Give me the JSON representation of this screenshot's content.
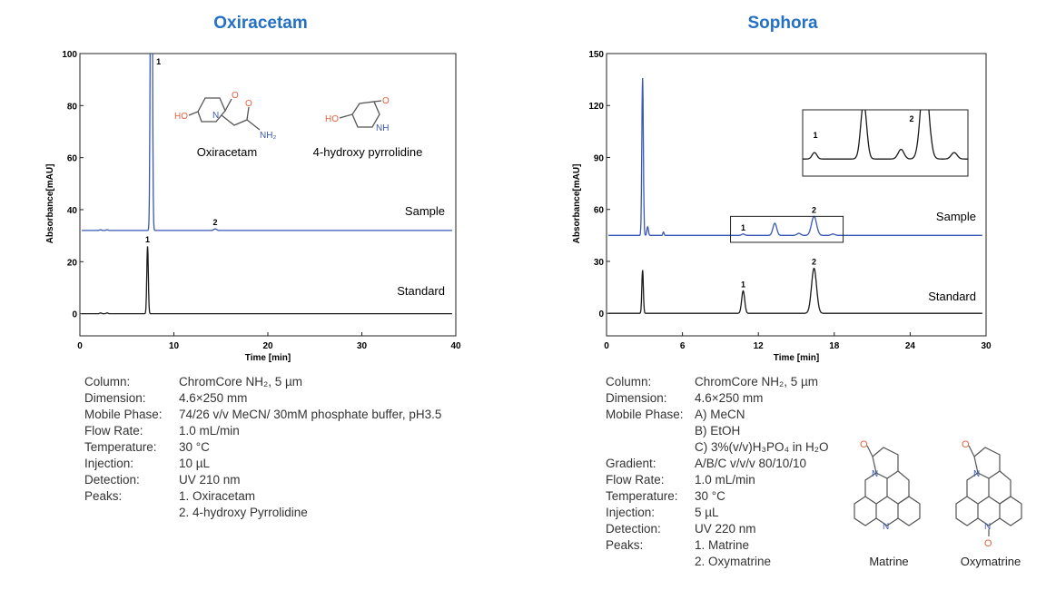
{
  "panels": [
    {
      "title": "Oxiracetam",
      "info": [
        {
          "key": "Column:",
          "values": [
            "ChromCore NH₂, 5 µm"
          ]
        },
        {
          "key": "Dimension:",
          "values": [
            "4.6×250 mm"
          ]
        },
        {
          "key": "Mobile Phase:",
          "values": [
            "74/26 v/v MeCN/ 30mM phosphate buffer, pH3.5"
          ]
        },
        {
          "key": "Flow Rate:",
          "values": [
            "1.0 mL/min"
          ]
        },
        {
          "key": "Temperature:",
          "values": [
            "30 °C"
          ]
        },
        {
          "key": "Injection:",
          "values": [
            "10 µL"
          ]
        },
        {
          "key": "Detection:",
          "values": [
            "UV 210 nm"
          ]
        },
        {
          "key": "Peaks:",
          "values": [
            "1. Oxiracetam",
            "2. 4-hydroxy Pyrrolidine"
          ]
        }
      ],
      "structures": [
        "Oxiracetam",
        "4-hydroxy pyrrolidine"
      ]
    },
    {
      "title": "Sophora",
      "info": [
        {
          "key": "Column:",
          "values": [
            "ChromCore NH₂, 5 µm"
          ]
        },
        {
          "key": "Dimension:",
          "values": [
            "4.6×250 mm"
          ]
        },
        {
          "key": "Mobile Phase:",
          "values": [
            "A) MeCN",
            "B) EtOH",
            "C) 3%(v/v)H₃PO₄ in H₂O"
          ]
        },
        {
          "key": "Gradient:",
          "values": [
            "A/B/C v/v/v 80/10/10"
          ]
        },
        {
          "key": "Flow Rate:",
          "values": [
            "1.0 mL/min"
          ]
        },
        {
          "key": "Temperature:",
          "values": [
            "30 °C"
          ]
        },
        {
          "key": "Injection:",
          "values": [
            "5 µL"
          ]
        },
        {
          "key": "Detection:",
          "values": [
            "UV 220 nm"
          ]
        },
        {
          "key": "Peaks:",
          "values": [
            "1. Matrine",
            "2. Oxymatrine"
          ]
        }
      ],
      "structures": [
        "Matrine",
        "Oxymatrine"
      ]
    }
  ],
  "colors": {
    "title": "#2470c4",
    "sample": "#3a57b5",
    "standard": "#1a1a1a"
  },
  "chart_data": [
    {
      "type": "line",
      "title": "Oxiracetam",
      "xlabel": "Time [min]",
      "ylabel": "Absorbance[mAU]",
      "xlim": [
        0,
        40
      ],
      "ylim": [
        -8.5,
        100
      ],
      "xticks": [
        0,
        10,
        20,
        30,
        40
      ],
      "yticks": [
        0,
        20,
        40,
        60,
        80,
        100
      ],
      "series": [
        {
          "name": "Sample",
          "baseline": 32,
          "color": "sample",
          "peaks": [
            {
              "t": 7.6,
              "h": 200,
              "w": 0.09,
              "label": "1"
            },
            {
              "t": 14.4,
              "h": 0.6,
              "w": 0.15,
              "label": "2"
            },
            {
              "t": 2.2,
              "h": 0.3,
              "w": 0.1
            },
            {
              "t": 2.9,
              "h": 0.3,
              "w": 0.1
            }
          ]
        },
        {
          "name": "Standard",
          "baseline": 0,
          "color": "standard",
          "peaks": [
            {
              "t": 7.2,
              "h": 26,
              "w": 0.08,
              "label": "1"
            },
            {
              "t": 2.2,
              "h": 0.3,
              "w": 0.1
            },
            {
              "t": 2.9,
              "h": 0.3,
              "w": 0.1
            }
          ]
        }
      ]
    },
    {
      "type": "line",
      "title": "Sophora",
      "xlabel": "Time [min]",
      "ylabel": "Absorbance[mAU]",
      "xlim": [
        0,
        30
      ],
      "ylim": [
        -13,
        150
      ],
      "xticks": [
        0,
        6,
        12,
        18,
        24,
        30
      ],
      "yticks": [
        0,
        30,
        60,
        90,
        120,
        150
      ],
      "series": [
        {
          "name": "Sample",
          "baseline": 45,
          "color": "sample",
          "peaks": [
            {
              "t": 2.85,
              "h": 91,
              "w": 0.06
            },
            {
              "t": 3.25,
              "h": 5,
              "w": 0.06
            },
            {
              "t": 4.5,
              "h": 2,
              "w": 0.05
            },
            {
              "t": 10.8,
              "h": 0.8,
              "w": 0.12,
              "label": "1"
            },
            {
              "t": 13.3,
              "h": 7,
              "w": 0.15
            },
            {
              "t": 15.2,
              "h": 1.2,
              "w": 0.15
            },
            {
              "t": 16.4,
              "h": 11,
              "w": 0.2,
              "label": "2"
            },
            {
              "t": 17.9,
              "h": 0.8,
              "w": 0.15
            }
          ]
        },
        {
          "name": "Standard",
          "baseline": 0,
          "color": "standard",
          "peaks": [
            {
              "t": 2.85,
              "h": 25,
              "w": 0.06
            },
            {
              "t": 10.8,
              "h": 13,
              "w": 0.12,
              "label": "1"
            },
            {
              "t": 16.4,
              "h": 26,
              "w": 0.2,
              "label": "2"
            }
          ]
        }
      ],
      "highlight_box": {
        "x": [
          9.8,
          18.7
        ],
        "y": [
          41,
          56
        ]
      },
      "inset": {
        "x": [
          10.2,
          18.6
        ],
        "ylim": [
          44,
          50
        ],
        "labels": [
          "1",
          "2"
        ]
      }
    }
  ]
}
